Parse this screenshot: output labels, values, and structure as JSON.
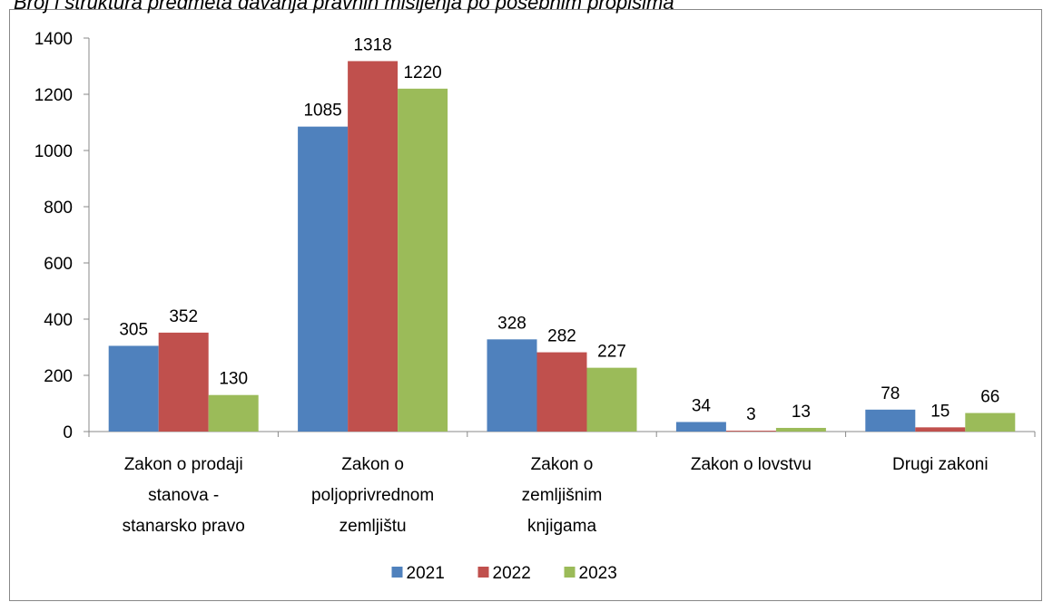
{
  "chart_data": {
    "type": "bar",
    "title": "Broj i struktura predmeta davanja pravnih mišljenja po posebnim propisima",
    "categories": [
      [
        "Zakon o prodaji",
        "stanova -",
        "stanarsko pravo"
      ],
      [
        "Zakon o",
        "poljoprivrednom",
        "zemljištu"
      ],
      [
        "Zakon o",
        "zemljišnim",
        "knjigama"
      ],
      [
        "Zakon o lovstvu"
      ],
      [
        "Drugi zakoni"
      ]
    ],
    "series": [
      {
        "name": "2021",
        "color": "#4f81bd",
        "values": [
          305,
          1085,
          328,
          34,
          78
        ]
      },
      {
        "name": "2022",
        "color": "#c0504d",
        "values": [
          352,
          1318,
          282,
          3,
          15
        ]
      },
      {
        "name": "2023",
        "color": "#9bbb59",
        "values": [
          130,
          1220,
          227,
          13,
          66
        ]
      }
    ],
    "ylim": [
      0,
      1400
    ],
    "yticks": [
      0,
      200,
      400,
      600,
      800,
      1000,
      1200,
      1400
    ],
    "grid": false,
    "legend": "bottom"
  }
}
